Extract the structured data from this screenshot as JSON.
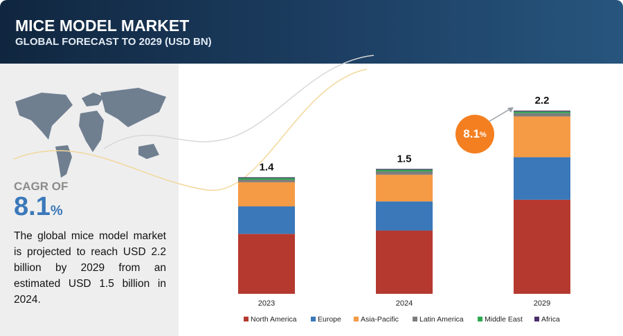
{
  "sidebar": {
    "cagr_label": "CAGR OF",
    "cagr_value": "8.1",
    "cagr_unit": "%",
    "description": "The global mice model market is projected to reach USD 2.2 billion by 2029 from an estimated USD 1.5 billion in 2024."
  },
  "chart_data": {
    "type": "stacked-bar",
    "title": "MICE MODEL MARKET",
    "subtitle": "GLOBAL FORECAST TO 2029 (USD BN)",
    "categories": [
      "2023",
      "2024",
      "2029"
    ],
    "totals": [
      1.4,
      1.5,
      2.2
    ],
    "series": [
      {
        "name": "North America",
        "color": "#b5392f",
        "values": [
          0.72,
          0.76,
          1.13
        ]
      },
      {
        "name": "Europe",
        "color": "#3a78b9",
        "values": [
          0.33,
          0.35,
          0.51
        ]
      },
      {
        "name": "Asia-Pacific",
        "color": "#f59a45",
        "values": [
          0.29,
          0.32,
          0.49
        ]
      },
      {
        "name": "Latin America",
        "color": "#7d7d7d",
        "values": [
          0.03,
          0.04,
          0.04
        ]
      },
      {
        "name": "Middle East",
        "color": "#2ea84f",
        "values": [
          0.02,
          0.02,
          0.02
        ]
      },
      {
        "name": "Africa",
        "color": "#4b2f6b",
        "values": [
          0.01,
          0.01,
          0.01
        ]
      }
    ]
  }
}
